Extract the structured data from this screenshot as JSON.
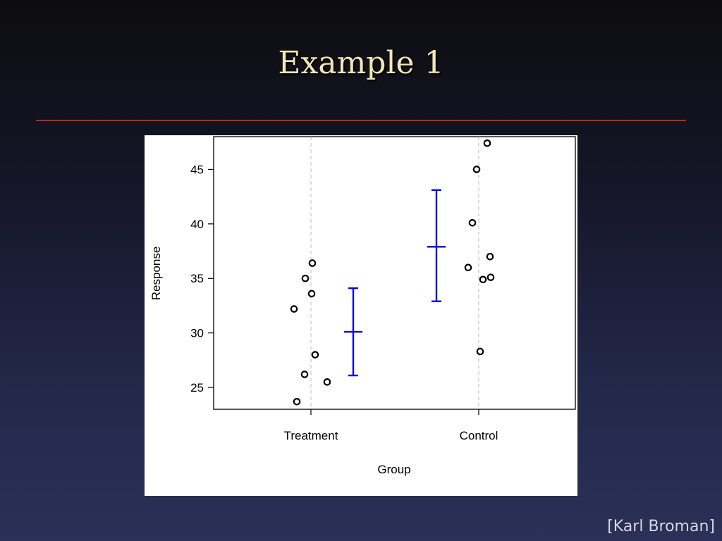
{
  "slide": {
    "title": "Example 1",
    "credit": "[Karl Broman]"
  },
  "colors": {
    "accent_rule": "#c8201a",
    "error_bar": "#0000e6",
    "points": "#000000"
  },
  "chart_data": {
    "type": "scatter",
    "xlabel": "Group",
    "ylabel": "Response",
    "categories": [
      "Treatment",
      "Control"
    ],
    "ylim": [
      23,
      48
    ],
    "yticks": [
      25,
      30,
      35,
      40,
      45
    ],
    "grid": "vertical dashed at categories",
    "series": [
      {
        "category": "Treatment",
        "points": [
          36.4,
          35.0,
          33.6,
          32.2,
          28.0,
          26.2,
          25.5,
          23.7
        ],
        "mean": 30.1,
        "ci": [
          26.1,
          34.1
        ]
      },
      {
        "category": "Control",
        "points": [
          47.4,
          45.0,
          40.1,
          37.0,
          36.0,
          35.1,
          34.9,
          28.3
        ],
        "mean": 37.9,
        "ci": [
          32.9,
          43.1
        ]
      }
    ]
  }
}
